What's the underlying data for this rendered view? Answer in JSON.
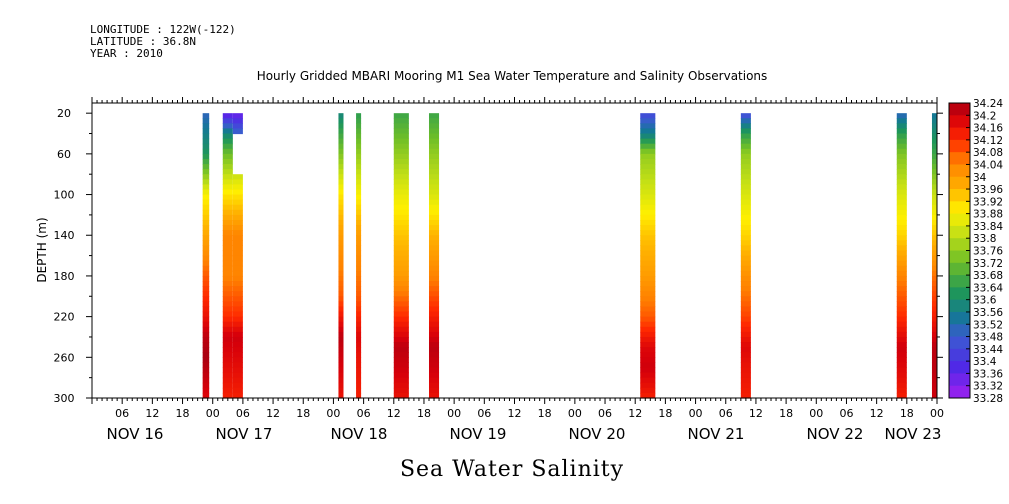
{
  "header": {
    "longitude": "LONGITUDE : 122W(-122)",
    "latitude": "LATITUDE : 36.8N",
    "year": "YEAR : 2010"
  },
  "chart_data": {
    "type": "heatmap",
    "title": "Hourly Gridded MBARI Mooring M1 Sea Water Temperature and Salinity Observations",
    "variable_title": "Sea Water Salinity",
    "ylabel": "DEPTH (m)",
    "xlabel": "",
    "ylim": [
      300,
      10
    ],
    "y_ticks": [
      20,
      60,
      100,
      140,
      180,
      220,
      260,
      300
    ],
    "x_hour_ticks": [
      "06",
      "12",
      "18",
      "00",
      "06",
      "12",
      "18",
      "00",
      "06",
      "12",
      "18",
      "00",
      "06",
      "12",
      "18",
      "00",
      "06",
      "12",
      "18",
      "00",
      "06",
      "12",
      "18",
      "00",
      "06",
      "12",
      "18",
      "00",
      "06",
      "12",
      "18",
      "00",
      "06"
    ],
    "x_date_labels": [
      "NOV 16",
      "NOV 17",
      "NOV 18",
      "NOV 19",
      "NOV 20",
      "NOV 21",
      "NOV 22",
      "NOV 23"
    ],
    "x_range_hours": [
      0,
      168
    ],
    "colorbar": {
      "min": 33.28,
      "max": 34.26,
      "labels": [
        "34.24",
        "34.2",
        "34.16",
        "34.12",
        "34.08",
        "34.04",
        "34",
        "33.96",
        "33.92",
        "33.88",
        "33.84",
        "33.8",
        "33.76",
        "33.72",
        "33.68",
        "33.64",
        "33.6",
        "33.56",
        "33.52",
        "33.48",
        "33.44",
        "33.4",
        "33.36",
        "33.32",
        "33.28"
      ]
    },
    "profiles": [
      {
        "start_hour": 22.0,
        "end_hour": 23.3,
        "depths": [
          20,
          60,
          100,
          140,
          180,
          220,
          240,
          260,
          300
        ],
        "values": [
          33.5,
          33.62,
          33.88,
          33.98,
          34.08,
          34.16,
          34.22,
          34.24,
          34.18
        ],
        "top": 20,
        "bottom": 300
      },
      {
        "start_hour": 26.0,
        "end_hour": 28.0,
        "depths": [
          20,
          40,
          60,
          100,
          140,
          180,
          220,
          240,
          260,
          300
        ],
        "values": [
          33.34,
          33.58,
          33.72,
          33.9,
          34.04,
          34.04,
          34.12,
          34.2,
          34.18,
          34.14
        ],
        "top": 20,
        "bottom": 300
      },
      {
        "start_hour": 28.0,
        "end_hour": 30.0,
        "depths": [
          20,
          40,
          100,
          140,
          180,
          220,
          240,
          260,
          300
        ],
        "values": [
          33.34,
          33.5,
          33.9,
          34.04,
          34.04,
          34.12,
          34.2,
          34.18,
          34.14
        ],
        "top": 20,
        "bottom": 40
      },
      {
        "start_hour": 28.0,
        "end_hour": 30.0,
        "depths": [
          80,
          100,
          140,
          180,
          220,
          240,
          260,
          300
        ],
        "values": [
          33.82,
          33.9,
          34.04,
          34.04,
          34.12,
          34.2,
          34.18,
          34.14
        ],
        "top": 80,
        "bottom": 300
      },
      {
        "start_hour": 49.0,
        "end_hour": 50.0,
        "depths": [
          20,
          60,
          100,
          140,
          200,
          240,
          260,
          300
        ],
        "values": [
          33.58,
          33.74,
          33.9,
          34.0,
          34.08,
          34.22,
          34.2,
          34.16
        ],
        "top": 20,
        "bottom": 300
      },
      {
        "start_hour": 52.5,
        "end_hour": 53.5,
        "depths": [
          20,
          60,
          100,
          140,
          200,
          240,
          260,
          300
        ],
        "values": [
          33.64,
          33.76,
          33.88,
          34.0,
          34.08,
          34.18,
          34.16,
          34.14
        ],
        "top": 20,
        "bottom": 300
      },
      {
        "start_hour": 60.0,
        "end_hour": 63.0,
        "depths": [
          20,
          60,
          100,
          140,
          180,
          220,
          250,
          270,
          300
        ],
        "values": [
          33.66,
          33.76,
          33.86,
          33.94,
          34.0,
          34.12,
          34.22,
          34.2,
          34.16
        ],
        "top": 20,
        "bottom": 300
      },
      {
        "start_hour": 67.0,
        "end_hour": 69.0,
        "depths": [
          20,
          60,
          100,
          140,
          180,
          220,
          250,
          270,
          300
        ],
        "values": [
          33.66,
          33.76,
          33.84,
          33.96,
          34.04,
          34.14,
          34.22,
          34.2,
          34.16
        ],
        "top": 20,
        "bottom": 300
      },
      {
        "start_hour": 109.0,
        "end_hour": 112.0,
        "depths": [
          20,
          40,
          60,
          100,
          140,
          180,
          220,
          250,
          270,
          300
        ],
        "values": [
          33.44,
          33.56,
          33.76,
          33.84,
          33.94,
          34.0,
          34.08,
          34.18,
          34.2,
          34.14
        ],
        "top": 20,
        "bottom": 300
      },
      {
        "start_hour": 129.0,
        "end_hour": 131.0,
        "depths": [
          20,
          40,
          60,
          100,
          140,
          180,
          220,
          250,
          270,
          300
        ],
        "values": [
          33.44,
          33.64,
          33.76,
          33.84,
          33.92,
          34.02,
          34.1,
          34.18,
          34.16,
          34.14
        ],
        "top": 20,
        "bottom": 300
      },
      {
        "start_hour": 160.0,
        "end_hour": 162.0,
        "depths": [
          20,
          40,
          60,
          100,
          140,
          180,
          220,
          250,
          270,
          300
        ],
        "values": [
          33.5,
          33.64,
          33.74,
          33.84,
          33.92,
          34.04,
          34.12,
          34.2,
          34.18,
          34.14
        ],
        "top": 20,
        "bottom": 300
      },
      {
        "start_hour": 167.0,
        "end_hour": 168.0,
        "depths": [
          20,
          60,
          100,
          140,
          180,
          220,
          250,
          270,
          300
        ],
        "values": [
          33.54,
          33.66,
          33.82,
          33.94,
          34.06,
          34.14,
          34.22,
          34.22,
          34.2
        ],
        "top": 20,
        "bottom": 300
      }
    ]
  }
}
